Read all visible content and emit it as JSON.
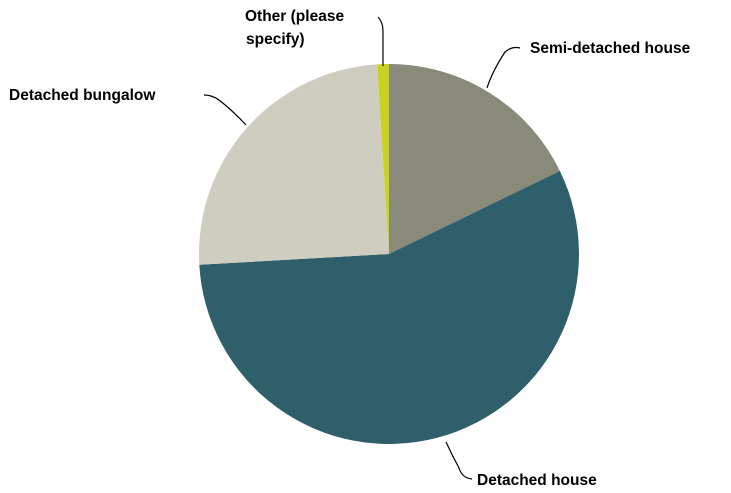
{
  "chart_data": {
    "type": "pie",
    "start_angle_deg": 0,
    "direction": "clockwise",
    "slices": [
      {
        "label": "Semi-detached house",
        "value": 17.8,
        "color": "#8a8a7a"
      },
      {
        "label": "Detached house",
        "value": 56.3,
        "color": "#2f5f6b"
      },
      {
        "label": "Detached bungalow",
        "value": 24.9,
        "color": "#cfcdbf"
      },
      {
        "label_lines": [
          "Other (please",
          "specify)"
        ],
        "value": 1.0,
        "color": "#c8d321"
      }
    ],
    "legend": "none",
    "data_labels": "outside with leader lines"
  }
}
